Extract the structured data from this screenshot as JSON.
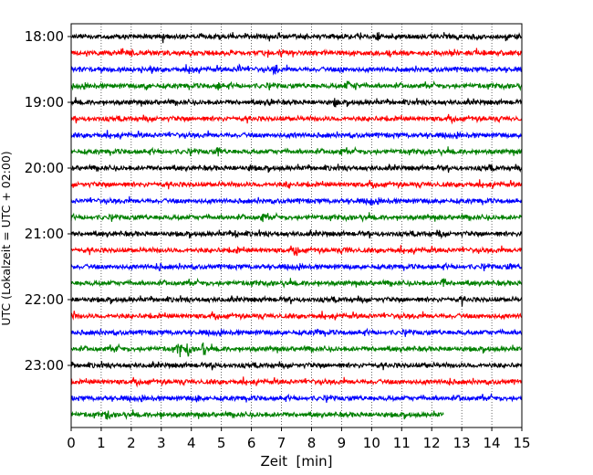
{
  "chart_data": {
    "type": "line",
    "title": "",
    "xlabel": "Zeit  [min]",
    "ylabel": "UTC (Lokalzeit = UTC + 02:00)",
    "xlim": [
      0,
      15
    ],
    "x_ticks": [
      0,
      1,
      2,
      3,
      4,
      5,
      6,
      7,
      8,
      9,
      10,
      11,
      12,
      13,
      14,
      15
    ],
    "x_tick_labels": [
      "0",
      "1",
      "2",
      "3",
      "4",
      "5",
      "6",
      "7",
      "8",
      "9",
      "10",
      "11",
      "12",
      "13",
      "14",
      "15"
    ],
    "y_tick_labels": [
      "18:00",
      "19:00",
      "20:00",
      "21:00",
      "22:00",
      "23:00"
    ],
    "y_tick_trace_index": [
      0,
      4,
      8,
      12,
      16,
      20
    ],
    "grid": "vertical dotted",
    "trace_minutes": 15,
    "color_cycle": [
      "#000000",
      "#ff0000",
      "#0000ff",
      "#008000"
    ],
    "traces": [
      {
        "start": "18:00",
        "color": "#000000",
        "end_min": 15,
        "events": [
          [
            3.1,
            2
          ],
          [
            10.2,
            3
          ],
          [
            10.8,
            2
          ]
        ]
      },
      {
        "start": "18:15",
        "color": "#ff0000",
        "end_min": 15,
        "events": [
          [
            2.0,
            2
          ],
          [
            7.0,
            2
          ]
        ]
      },
      {
        "start": "18:30",
        "color": "#0000ff",
        "end_min": 15,
        "events": [
          [
            4.0,
            4
          ],
          [
            5.6,
            4
          ],
          [
            6.8,
            5
          ],
          [
            9.0,
            2
          ]
        ]
      },
      {
        "start": "18:45",
        "color": "#008000",
        "end_min": 15,
        "events": [
          [
            2.5,
            3
          ],
          [
            4.9,
            3
          ],
          [
            9.2,
            4
          ],
          [
            9.5,
            3
          ]
        ]
      },
      {
        "start": "19:00",
        "color": "#000000",
        "end_min": 15,
        "events": [
          [
            6.6,
            3
          ],
          [
            8.8,
            3
          ]
        ]
      },
      {
        "start": "19:15",
        "color": "#ff0000",
        "end_min": 15,
        "events": []
      },
      {
        "start": "19:30",
        "color": "#0000ff",
        "end_min": 15,
        "events": [
          [
            7.5,
            2
          ]
        ]
      },
      {
        "start": "19:45",
        "color": "#008000",
        "end_min": 15,
        "events": [
          [
            4.9,
            4
          ],
          [
            9.0,
            2
          ]
        ]
      },
      {
        "start": "20:00",
        "color": "#000000",
        "end_min": 15,
        "events": [
          [
            6.0,
            2
          ],
          [
            13.9,
            2
          ]
        ]
      },
      {
        "start": "20:15",
        "color": "#ff0000",
        "end_min": 15,
        "events": [
          [
            7.2,
            2
          ]
        ]
      },
      {
        "start": "20:30",
        "color": "#0000ff",
        "end_min": 15,
        "events": [
          [
            10.0,
            3
          ]
        ]
      },
      {
        "start": "20:45",
        "color": "#008000",
        "end_min": 15,
        "events": [
          [
            6.4,
            4
          ]
        ]
      },
      {
        "start": "21:00",
        "color": "#000000",
        "end_min": 15,
        "events": [
          [
            5.5,
            3
          ],
          [
            12.3,
            2
          ]
        ]
      },
      {
        "start": "21:15",
        "color": "#ff0000",
        "end_min": 15,
        "events": [
          [
            5.5,
            2
          ],
          [
            7.5,
            3
          ],
          [
            9.2,
            3
          ]
        ]
      },
      {
        "start": "21:30",
        "color": "#0000ff",
        "end_min": 15,
        "events": [
          [
            2.9,
            3
          ],
          [
            14.6,
            2
          ]
        ]
      },
      {
        "start": "21:45",
        "color": "#008000",
        "end_min": 15,
        "events": [
          [
            12.4,
            4
          ]
        ]
      },
      {
        "start": "22:00",
        "color": "#000000",
        "end_min": 15,
        "events": [
          [
            13.0,
            3
          ]
        ]
      },
      {
        "start": "22:15",
        "color": "#ff0000",
        "end_min": 15,
        "events": [
          [
            0.1,
            3
          ]
        ]
      },
      {
        "start": "22:30",
        "color": "#0000ff",
        "end_min": 15,
        "events": [
          [
            8.2,
            3
          ]
        ]
      },
      {
        "start": "22:45",
        "color": "#008000",
        "end_min": 15,
        "events": [
          [
            3.6,
            8
          ],
          [
            3.9,
            7
          ],
          [
            4.4,
            7
          ],
          [
            1.5,
            2
          ]
        ]
      },
      {
        "start": "23:00",
        "color": "#000000",
        "end_min": 15,
        "events": [
          [
            4.8,
            2
          ],
          [
            11.8,
            2
          ]
        ]
      },
      {
        "start": "23:15",
        "color": "#ff0000",
        "end_min": 15,
        "events": [
          [
            12.6,
            2
          ]
        ]
      },
      {
        "start": "23:30",
        "color": "#0000ff",
        "end_min": 15,
        "events": [
          [
            4.2,
            3
          ],
          [
            13.0,
            2
          ]
        ]
      },
      {
        "start": "23:45",
        "color": "#008000",
        "end_min": 12.4,
        "events": [
          [
            1.2,
            4
          ],
          [
            3.0,
            2
          ]
        ]
      }
    ]
  }
}
